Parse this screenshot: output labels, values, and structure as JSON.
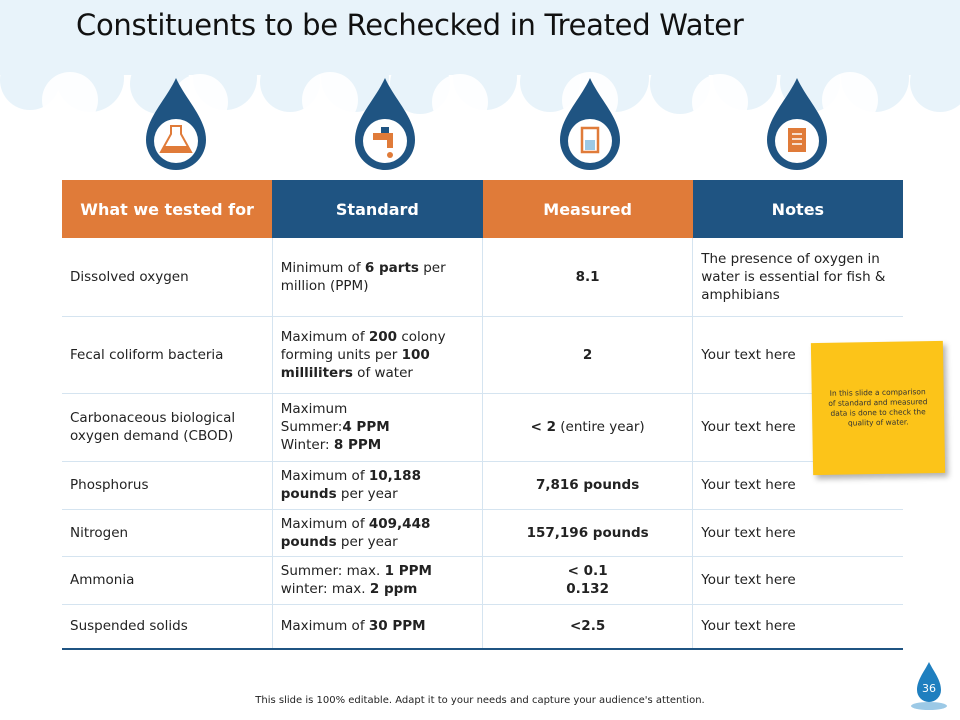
{
  "header": {
    "title": "Constituents to be Rechecked in Treated Water"
  },
  "table": {
    "columns": [
      "What we tested for",
      "Standard",
      "Measured",
      "Notes"
    ],
    "rows": [
      [
        "Dissolved oxygen",
        [
          {
            "text": "Minimum of ",
            "bold": false
          },
          {
            "text": "6 parts",
            "bold": true
          },
          {
            "text": " per million (PPM)",
            "bold": false
          }
        ],
        [
          {
            "text": "8.1",
            "bold": true
          }
        ],
        "The presence of oxygen in water is essential for fish & amphibians"
      ],
      [
        "Fecal coliform bacteria",
        [
          {
            "text": "Maximum of ",
            "bold": false
          },
          {
            "text": "200",
            "bold": true
          },
          {
            "text": " colony forming units per ",
            "bold": false
          },
          {
            "text": "100 milliliters",
            "bold": true
          },
          {
            "text": " of water",
            "bold": false
          }
        ],
        [
          {
            "text": "2",
            "bold": true
          }
        ],
        "Your text here"
      ],
      [
        "Carbonaceous biological oxygen demand (CBOD)",
        [
          {
            "text": "Maximum\nSummer:",
            "bold": false
          },
          {
            "text": "4 PPM",
            "bold": true
          },
          {
            "text": "\nWinter: ",
            "bold": false
          },
          {
            "text": "8 PPM",
            "bold": true
          }
        ],
        [
          {
            "text": "< 2",
            "bold": true
          },
          {
            "text": " (entire year)",
            "bold": false
          }
        ],
        "Your text here"
      ],
      [
        "Phosphorus",
        [
          {
            "text": "Maximum of ",
            "bold": false
          },
          {
            "text": "10,188 pounds",
            "bold": true
          },
          {
            "text": " per year",
            "bold": false
          }
        ],
        [
          {
            "text": "7,816 pounds",
            "bold": true
          }
        ],
        "Your text here"
      ],
      [
        "Nitrogen",
        [
          {
            "text": "Maximum of ",
            "bold": false
          },
          {
            "text": "409,448 pounds",
            "bold": true
          },
          {
            "text": " per year",
            "bold": false
          }
        ],
        [
          {
            "text": "157,196 pounds",
            "bold": true
          }
        ],
        "Your text here"
      ],
      [
        "Ammonia",
        [
          {
            "text": "Summer: max. ",
            "bold": false
          },
          {
            "text": "1 PPM",
            "bold": true
          },
          {
            "text": "\nwinter:     max. ",
            "bold": false
          },
          {
            "text": "2 ppm",
            "bold": true
          }
        ],
        [
          {
            "text": "< 0.1\n0.132",
            "bold": true
          }
        ],
        "Your text here"
      ],
      [
        "Suspended solids",
        [
          {
            "text": "Maximum of ",
            "bold": false
          },
          {
            "text": "30 PPM",
            "bold": true
          }
        ],
        [
          {
            "text": "<2.5",
            "bold": true
          }
        ],
        "Your text here"
      ]
    ]
  },
  "note": "In this slide a comparison of standard and measured data is done to check the quality of water.",
  "footer": {
    "text": "This slide is 100% editable. Adapt it to your needs and capture your audience's attention.",
    "page": "36"
  }
}
